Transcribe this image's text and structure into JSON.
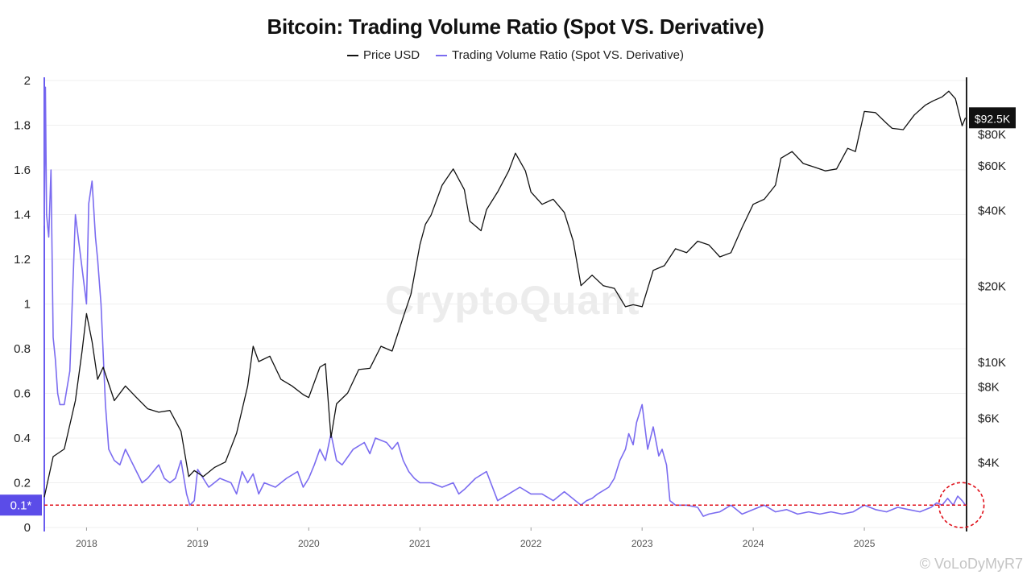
{
  "chart_data": {
    "type": "line",
    "title": "Bitcoin: Trading Volume Ratio (Spot VS. Derivative)",
    "watermark": "CryptoQuant",
    "footer": "© VoLoDyMyR7",
    "legend": [
      {
        "name": "Price USD",
        "color": "#111111"
      },
      {
        "name": "Trading Volume Ratio (Spot VS. Derivative)",
        "color": "#7b6cf0"
      }
    ],
    "x_range": [
      2017.62,
      2025.92
    ],
    "x_ticks": [
      "2018",
      "2019",
      "2020",
      "2021",
      "2022",
      "2023",
      "2024",
      "2025"
    ],
    "y_left": {
      "range": [
        0,
        2
      ],
      "ticks": [
        "0",
        "0.2",
        "0.4",
        "0.6",
        "0.8",
        "1",
        "1.2",
        "1.4",
        "1.6",
        "1.8",
        "2"
      ]
    },
    "y_right": {
      "scale": "log",
      "range": [
        2200,
        130000
      ],
      "ticks": [
        "$4K",
        "$6K",
        "$8K",
        "$10K",
        "$20K",
        "$40K",
        "$60K",
        "$80K"
      ],
      "tick_values": [
        4000,
        6000,
        8000,
        10000,
        20000,
        40000,
        60000,
        80000
      ]
    },
    "reference_line": {
      "value": 0.1,
      "label": "0.1*",
      "style": "dashed",
      "color": "#e0101a"
    },
    "last_price_label": "$92.5K",
    "highlight": "dashed red circle around latest ratio values",
    "series": [
      {
        "name": "Price USD",
        "axis": "right",
        "x": [
          2017.62,
          2017.7,
          2017.8,
          2017.9,
          2017.96,
          2018.0,
          2018.05,
          2018.1,
          2018.15,
          2018.25,
          2018.35,
          2018.45,
          2018.55,
          2018.65,
          2018.75,
          2018.85,
          2018.92,
          2018.97,
          2019.05,
          2019.15,
          2019.25,
          2019.35,
          2019.45,
          2019.5,
          2019.55,
          2019.65,
          2019.75,
          2019.85,
          2019.95,
          2020.0,
          2020.1,
          2020.15,
          2020.2,
          2020.25,
          2020.35,
          2020.45,
          2020.55,
          2020.65,
          2020.75,
          2020.85,
          2020.92,
          2021.0,
          2021.05,
          2021.1,
          2021.2,
          2021.3,
          2021.4,
          2021.45,
          2021.55,
          2021.6,
          2021.7,
          2021.8,
          2021.86,
          2021.95,
          2022.0,
          2022.1,
          2022.2,
          2022.3,
          2022.38,
          2022.45,
          2022.55,
          2022.65,
          2022.75,
          2022.85,
          2022.92,
          2023.0,
          2023.1,
          2023.2,
          2023.3,
          2023.4,
          2023.5,
          2023.6,
          2023.7,
          2023.8,
          2023.9,
          2024.0,
          2024.1,
          2024.2,
          2024.25,
          2024.35,
          2024.45,
          2024.55,
          2024.65,
          2024.75,
          2024.85,
          2024.92,
          2025.0,
          2025.1,
          2025.2,
          2025.25,
          2025.35,
          2025.45,
          2025.55,
          2025.62,
          2025.7,
          2025.76,
          2025.82,
          2025.88,
          2025.91
        ],
        "y": [
          2900,
          4200,
          4500,
          7000,
          11000,
          15500,
          12000,
          8500,
          9500,
          7000,
          8000,
          7200,
          6500,
          6300,
          6400,
          5300,
          3500,
          3700,
          3500,
          3800,
          4000,
          5200,
          8000,
          11500,
          10000,
          10500,
          8500,
          8000,
          7400,
          7200,
          9500,
          9800,
          5000,
          6800,
          7500,
          9300,
          9400,
          11500,
          11000,
          15000,
          18500,
          29000,
          35000,
          38000,
          50000,
          58000,
          48000,
          36000,
          33000,
          40000,
          47000,
          57000,
          67000,
          57000,
          47000,
          42000,
          44000,
          39000,
          30000,
          20000,
          22000,
          20000,
          19500,
          16500,
          16800,
          16500,
          23000,
          24000,
          28000,
          27000,
          30000,
          29000,
          26000,
          27000,
          34000,
          42000,
          44000,
          50000,
          64000,
          68000,
          61000,
          59000,
          57000,
          58000,
          70000,
          68000,
          98000,
          97000,
          88000,
          84000,
          83000,
          95000,
          104000,
          108000,
          112000,
          118000,
          110000,
          86000,
          92500
        ]
      },
      {
        "name": "Trading Volume Ratio (Spot VS. Derivative)",
        "axis": "left",
        "x": [
          2017.62,
          2017.63,
          2017.64,
          2017.66,
          2017.68,
          2017.7,
          2017.72,
          2017.74,
          2017.76,
          2017.8,
          2017.85,
          2017.9,
          2017.95,
          2018.0,
          2018.02,
          2018.05,
          2018.08,
          2018.1,
          2018.13,
          2018.17,
          2018.2,
          2018.25,
          2018.3,
          2018.35,
          2018.4,
          2018.45,
          2018.5,
          2018.55,
          2018.6,
          2018.65,
          2018.7,
          2018.75,
          2018.8,
          2018.85,
          2018.9,
          2018.93,
          2018.97,
          2019.0,
          2019.05,
          2019.1,
          2019.2,
          2019.3,
          2019.35,
          2019.4,
          2019.45,
          2019.5,
          2019.55,
          2019.6,
          2019.7,
          2019.8,
          2019.9,
          2019.95,
          2020.0,
          2020.05,
          2020.1,
          2020.15,
          2020.2,
          2020.25,
          2020.3,
          2020.4,
          2020.5,
          2020.55,
          2020.6,
          2020.7,
          2020.75,
          2020.8,
          2020.85,
          2020.9,
          2020.95,
          2021.0,
          2021.1,
          2021.2,
          2021.3,
          2021.35,
          2021.4,
          2021.5,
          2021.6,
          2021.7,
          2021.8,
          2021.9,
          2022.0,
          2022.1,
          2022.2,
          2022.3,
          2022.35,
          2022.4,
          2022.45,
          2022.5,
          2022.55,
          2022.6,
          2022.7,
          2022.75,
          2022.8,
          2022.85,
          2022.88,
          2022.92,
          2022.95,
          2023.0,
          2023.05,
          2023.1,
          2023.15,
          2023.18,
          2023.22,
          2023.25,
          2023.3,
          2023.4,
          2023.5,
          2023.55,
          2023.6,
          2023.7,
          2023.8,
          2023.9,
          2024.0,
          2024.1,
          2024.2,
          2024.3,
          2024.4,
          2024.5,
          2024.6,
          2024.7,
          2024.8,
          2024.9,
          2025.0,
          2025.1,
          2025.2,
          2025.3,
          2025.4,
          2025.5,
          2025.6,
          2025.65,
          2025.7,
          2025.75,
          2025.8,
          2025.84,
          2025.88,
          2025.91
        ],
        "y": [
          1.35,
          1.97,
          1.4,
          1.3,
          1.6,
          0.85,
          0.75,
          0.6,
          0.55,
          0.55,
          0.7,
          1.4,
          1.2,
          1.0,
          1.45,
          1.55,
          1.3,
          1.2,
          1.0,
          0.55,
          0.35,
          0.3,
          0.28,
          0.35,
          0.3,
          0.25,
          0.2,
          0.22,
          0.25,
          0.28,
          0.22,
          0.2,
          0.22,
          0.3,
          0.15,
          0.1,
          0.12,
          0.26,
          0.22,
          0.18,
          0.22,
          0.2,
          0.15,
          0.25,
          0.2,
          0.24,
          0.15,
          0.2,
          0.18,
          0.22,
          0.25,
          0.18,
          0.22,
          0.28,
          0.35,
          0.3,
          0.42,
          0.3,
          0.28,
          0.35,
          0.38,
          0.33,
          0.4,
          0.38,
          0.35,
          0.38,
          0.3,
          0.25,
          0.22,
          0.2,
          0.2,
          0.18,
          0.2,
          0.15,
          0.17,
          0.22,
          0.25,
          0.12,
          0.15,
          0.18,
          0.15,
          0.15,
          0.12,
          0.16,
          0.14,
          0.12,
          0.1,
          0.12,
          0.13,
          0.15,
          0.18,
          0.22,
          0.3,
          0.35,
          0.42,
          0.37,
          0.47,
          0.55,
          0.35,
          0.45,
          0.32,
          0.35,
          0.28,
          0.12,
          0.1,
          0.1,
          0.09,
          0.05,
          0.06,
          0.07,
          0.1,
          0.06,
          0.08,
          0.1,
          0.07,
          0.08,
          0.06,
          0.07,
          0.06,
          0.07,
          0.06,
          0.07,
          0.1,
          0.08,
          0.07,
          0.09,
          0.08,
          0.07,
          0.09,
          0.11,
          0.1,
          0.13,
          0.1,
          0.14,
          0.12,
          0.1
        ]
      }
    ]
  }
}
